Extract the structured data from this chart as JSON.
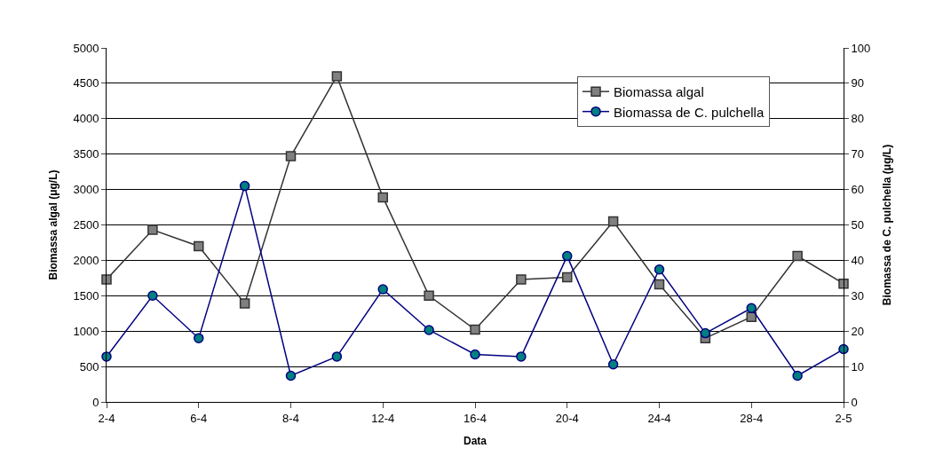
{
  "chart_data": {
    "type": "line",
    "xlabel": "Data",
    "ylabel": "Biomassa algal (μg/L)",
    "y2label": "Biomassa de C. pulchella (μg/L)",
    "categories": [
      "2-4",
      null,
      "6-4",
      null,
      "8-4",
      null,
      "12-4",
      null,
      "16-4",
      null,
      "20-4",
      null,
      "24-4",
      null,
      "28-4",
      null,
      "2-5"
    ],
    "series": [
      {
        "name": "Biomassa algal",
        "color": "#333333",
        "marker": "square",
        "values": [
          1730,
          2430,
          2200,
          1390,
          3470,
          4600,
          2890,
          1500,
          1020,
          1730,
          1760,
          2550,
          1660,
          900,
          1200,
          2060,
          1670
        ]
      },
      {
        "name": "Biomassa de C. pulchella",
        "color": "#000080",
        "marker": "circle",
        "axis": "y2",
        "values": [
          12.8,
          30,
          18,
          61,
          7.4,
          12.8,
          31.8,
          20.3,
          13.4,
          12.8,
          41.2,
          10.6,
          37.4,
          19.4,
          26.5,
          7.4,
          14.9
        ]
      }
    ],
    "ylim": [
      0,
      5000
    ],
    "yticks": [
      0,
      500,
      1000,
      1500,
      2000,
      2500,
      3000,
      3500,
      4000,
      4500,
      5000
    ],
    "y2lim": [
      0,
      100
    ],
    "y2ticks": [
      0,
      10,
      20,
      30,
      40,
      50,
      60,
      70,
      80,
      90,
      100
    ],
    "grid": "y",
    "legend": "top right"
  }
}
